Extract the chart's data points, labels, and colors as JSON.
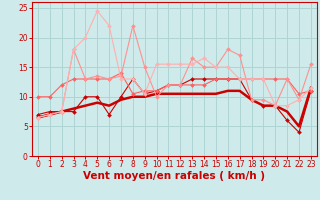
{
  "title": "",
  "xlabel": "Vent moyen/en rafales ( km/h )",
  "ylabel": "",
  "bg_color": "#ceeaea",
  "grid_color": "#add4d4",
  "xlim": [
    -0.5,
    23.5
  ],
  "ylim": [
    0,
    26
  ],
  "yticks": [
    0,
    5,
    10,
    15,
    20,
    25
  ],
  "xticks": [
    0,
    1,
    2,
    3,
    4,
    5,
    6,
    7,
    8,
    9,
    10,
    11,
    12,
    13,
    14,
    15,
    16,
    17,
    18,
    19,
    20,
    21,
    22,
    23
  ],
  "series": [
    {
      "label": "line_flat_dark",
      "color": "#cc0000",
      "lw": 1.8,
      "marker": null,
      "ms": 0,
      "x": [
        0,
        1,
        2,
        3,
        4,
        5,
        6,
        7,
        8,
        9,
        10,
        11,
        12,
        13,
        14,
        15,
        16,
        17,
        18,
        19,
        20,
        21,
        22,
        23
      ],
      "y": [
        6.5,
        7.0,
        7.5,
        8.0,
        8.5,
        9.0,
        8.5,
        9.5,
        10.0,
        10.0,
        10.5,
        10.5,
        10.5,
        10.5,
        10.5,
        10.5,
        11.0,
        11.0,
        9.5,
        8.5,
        8.5,
        7.5,
        5.0,
        11.5
      ]
    },
    {
      "label": "line_markers_dark",
      "color": "#cc0000",
      "lw": 0.8,
      "marker": "D",
      "ms": 2.0,
      "x": [
        0,
        1,
        2,
        3,
        4,
        5,
        6,
        7,
        8,
        9,
        10,
        11,
        12,
        13,
        14,
        15,
        16,
        17,
        18,
        19,
        20,
        21,
        22,
        23
      ],
      "y": [
        7.0,
        7.5,
        7.5,
        7.5,
        10.0,
        10.0,
        7.0,
        10.0,
        13.0,
        10.5,
        11.0,
        12.0,
        12.0,
        13.0,
        13.0,
        13.0,
        13.0,
        13.0,
        9.5,
        8.5,
        8.5,
        6.0,
        4.0,
        11.0
      ]
    },
    {
      "label": "line_medium",
      "color": "#ff6060",
      "lw": 0.8,
      "marker": "D",
      "ms": 2.0,
      "x": [
        0,
        1,
        2,
        3,
        4,
        5,
        6,
        7,
        8,
        9,
        10,
        11,
        12,
        13,
        14,
        15,
        16,
        17,
        18,
        19,
        20,
        21,
        22,
        23
      ],
      "y": [
        10.0,
        10.0,
        12.0,
        13.0,
        13.0,
        13.0,
        13.0,
        14.0,
        10.5,
        11.0,
        11.0,
        12.0,
        12.0,
        12.0,
        12.0,
        13.0,
        13.0,
        13.0,
        13.0,
        13.0,
        13.0,
        13.0,
        10.5,
        11.0
      ]
    },
    {
      "label": "line_light",
      "color": "#ff9090",
      "lw": 0.8,
      "marker": "D",
      "ms": 2.0,
      "x": [
        0,
        1,
        2,
        3,
        4,
        5,
        6,
        7,
        8,
        9,
        10,
        11,
        12,
        13,
        14,
        15,
        16,
        17,
        18,
        19,
        20,
        21,
        22,
        23
      ],
      "y": [
        6.5,
        7.0,
        7.5,
        18.0,
        13.0,
        13.5,
        13.0,
        13.5,
        22.0,
        15.0,
        10.0,
        12.0,
        12.0,
        16.5,
        15.0,
        15.0,
        18.0,
        17.0,
        9.5,
        9.5,
        8.5,
        13.0,
        9.5,
        15.5
      ]
    },
    {
      "label": "line_lightest",
      "color": "#ffb0b0",
      "lw": 0.8,
      "marker": "D",
      "ms": 2.0,
      "x": [
        0,
        1,
        2,
        3,
        4,
        5,
        6,
        7,
        8,
        9,
        10,
        11,
        12,
        13,
        14,
        15,
        16,
        17,
        18,
        19,
        20,
        21,
        22,
        23
      ],
      "y": [
        6.5,
        7.0,
        7.5,
        18.0,
        20.0,
        24.5,
        22.0,
        13.0,
        13.0,
        10.5,
        15.5,
        15.5,
        15.5,
        15.5,
        16.5,
        15.0,
        15.0,
        13.0,
        13.0,
        13.0,
        8.5,
        8.5,
        9.5,
        11.5
      ]
    }
  ],
  "xlabel_color": "#cc0000",
  "tick_color": "#cc0000",
  "axis_color": "#cc0000",
  "tick_fontsize": 5.5,
  "xlabel_fontsize": 7.5
}
